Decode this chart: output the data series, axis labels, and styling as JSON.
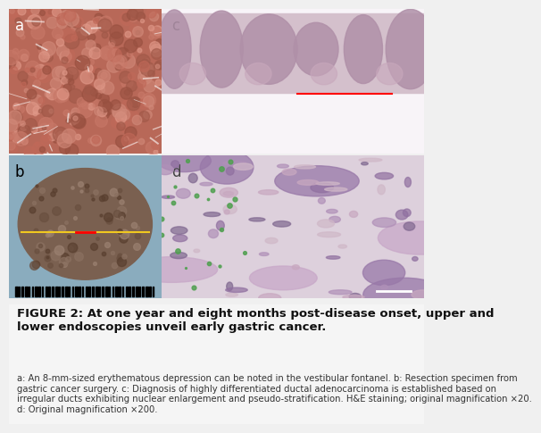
{
  "title": "FIGURE 2: At one year and eight months post-disease onset, upper and\nlower endoscopies unveil early gastric cancer.",
  "caption": "a: An 8-mm-sized erythematous depression can be noted in the vestibular fontanel. b: Resection specimen from\ngastric cancer surgery. c: Diagnosis of highly differentiated ductal adenocarcinoma is established based on\nirregular ducts exhibiting nuclear enlargement and pseudo-stratification. H&E staining; original magnification ×20.\nd: Original magnification ×200.",
  "background_color": "#f0f0f0",
  "title_fontsize": 9.5,
  "caption_fontsize": 7.2,
  "label_fontsize": 12
}
